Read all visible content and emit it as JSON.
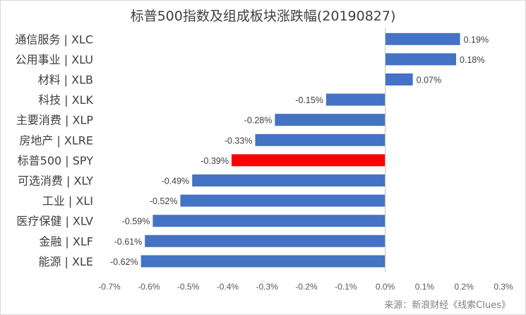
{
  "chart_data": {
    "type": "bar",
    "orientation": "horizontal",
    "title": "标普500指数及组成板块涨跌幅(20190827)",
    "categories": [
      "通信服务 | XLC",
      "公用事业 | XLU",
      "材料 | XLB",
      "科技 | XLK",
      "主要消费 | XLP",
      "房地产 | XLRE",
      "标普500 | SPY",
      "可选消费 | XLY",
      "工业 | XLI",
      "医疗保健 | XLV",
      "金融 | XLF",
      "能源 | XLE"
    ],
    "values": [
      0.19,
      0.18,
      0.07,
      -0.15,
      -0.28,
      -0.33,
      -0.39,
      -0.49,
      -0.52,
      -0.59,
      -0.61,
      -0.62
    ],
    "value_labels": [
      "0.19%",
      "0.18%",
      "0.07%",
      "-0.15%",
      "-0.28%",
      "-0.33%",
      "-0.39%",
      "-0.49%",
      "-0.52%",
      "-0.59%",
      "-0.61%",
      "-0.62%"
    ],
    "xlim": [
      -0.7,
      0.3
    ],
    "x_ticks": [
      -0.7,
      -0.6,
      -0.5,
      -0.4,
      -0.3,
      -0.2,
      -0.1,
      0.0,
      0.1,
      0.2,
      0.3
    ],
    "x_tick_labels": [
      "-0.7%",
      "-0.6%",
      "-0.5%",
      "-0.4%",
      "-0.3%",
      "-0.2%",
      "-0.1%",
      "0.0%",
      "0.1%",
      "0.2%",
      "0.3%"
    ],
    "grid": false,
    "legend": "none",
    "colors": {
      "default": "#4472C4",
      "highlight": "#FF0000"
    },
    "highlight_index": 6
  },
  "source": "来源：新浪财经《线索Clues》"
}
